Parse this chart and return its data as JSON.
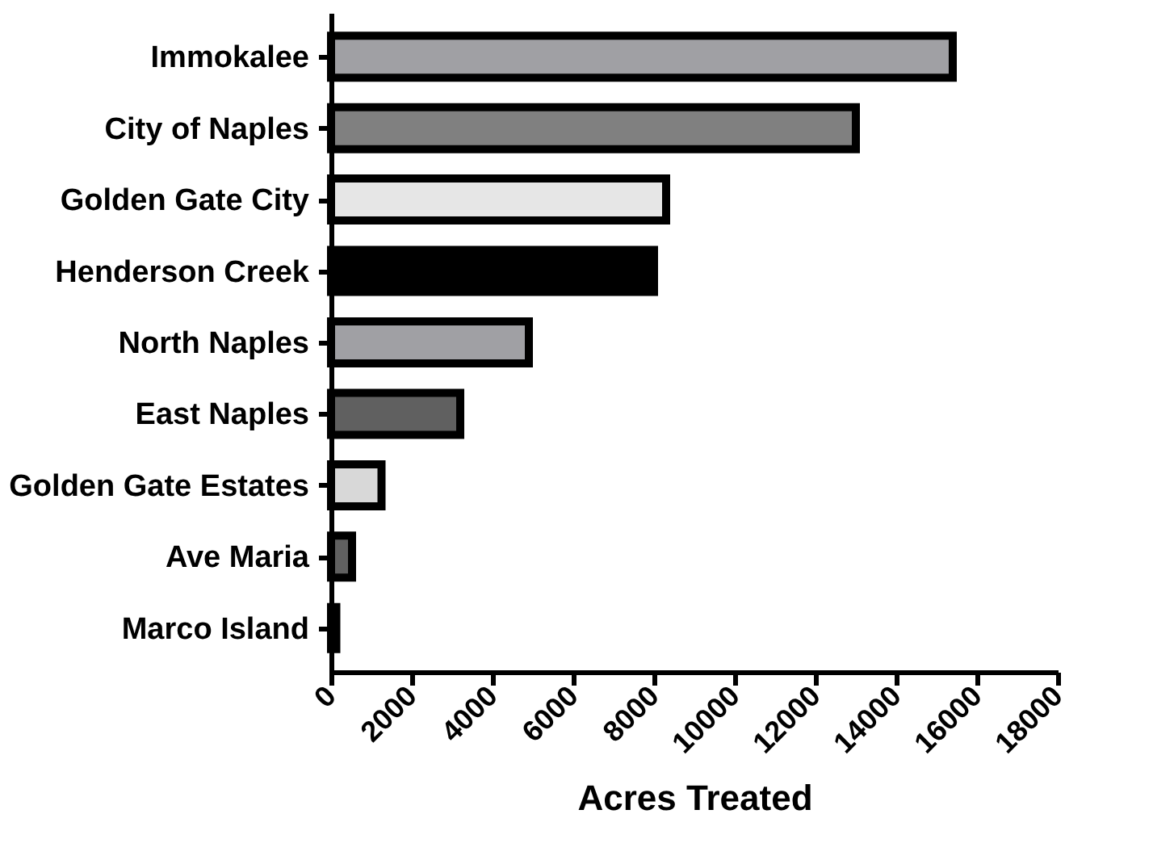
{
  "chart_data": {
    "type": "bar",
    "orientation": "horizontal",
    "xlabel": "Acres Treated",
    "categories": [
      "Immokalee",
      "City of Naples",
      "Golden Gate City",
      "Henderson Creek",
      "North Naples",
      "East Naples",
      "Golden Gate Estates",
      "Ave Maria",
      "Marco Island"
    ],
    "values": [
      15400,
      13000,
      8300,
      8000,
      4900,
      3200,
      1250,
      520,
      130
    ],
    "colors": [
      "#a0a0a4",
      "#808080",
      "#e6e6e6",
      "#000000",
      "#a0a0a4",
      "#606060",
      "#d8d8d8",
      "#606060",
      "#000000"
    ],
    "xlim": [
      0,
      18000
    ],
    "xticks": [
      0,
      2000,
      4000,
      6000,
      8000,
      10000,
      12000,
      14000,
      16000,
      18000
    ],
    "grid": false
  }
}
